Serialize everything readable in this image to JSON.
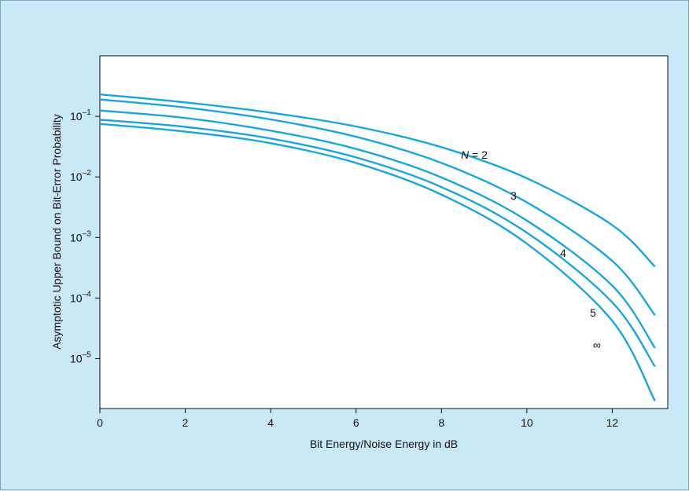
{
  "chart_data": {
    "type": "line",
    "title": "",
    "xlabel": "Bit Energy/Noise Energy in dB",
    "ylabel": "Asymptotic Upper Bound on Bit-Error Probability",
    "x_scale": "linear",
    "y_scale": "log",
    "xlim": [
      0,
      13.3
    ],
    "ylim": [
      1.5e-06,
      1.0
    ],
    "x_ticks": [
      0,
      2,
      4,
      6,
      8,
      10,
      12
    ],
    "y_ticks": [
      {
        "value": 0.1,
        "base": "10",
        "exp": "–1"
      },
      {
        "value": 0.01,
        "base": "10",
        "exp": "–2"
      },
      {
        "value": 0.001,
        "base": "10",
        "exp": "–3"
      },
      {
        "value": 0.0001,
        "base": "10",
        "exp": "–4"
      },
      {
        "value": 1e-05,
        "base": "10",
        "exp": "–5"
      }
    ],
    "grid": false,
    "line_color": "#1aa6dd",
    "series": [
      {
        "name": "N = 2",
        "x": [
          0,
          2,
          4,
          6,
          8,
          10,
          12,
          13
        ],
        "values": [
          0.23,
          0.17,
          0.115,
          0.068,
          0.031,
          0.0095,
          0.0016,
          0.00033
        ]
      },
      {
        "name": "3",
        "x": [
          0,
          2,
          4,
          6,
          8,
          10,
          12,
          13
        ],
        "values": [
          0.19,
          0.14,
          0.089,
          0.046,
          0.017,
          0.0038,
          0.00041,
          5.2e-05
        ]
      },
      {
        "name": "4",
        "x": [
          0,
          2,
          4,
          6,
          8,
          10,
          12,
          13
        ],
        "values": [
          0.125,
          0.094,
          0.058,
          0.029,
          0.0098,
          0.0019,
          0.00016,
          1.5e-05
        ]
      },
      {
        "name": "5",
        "x": [
          0,
          2,
          4,
          6,
          8,
          10,
          12,
          13
        ],
        "values": [
          0.088,
          0.067,
          0.043,
          0.021,
          0.0068,
          0.0012,
          8.5e-05,
          7.4e-06
        ]
      },
      {
        "name": "∞",
        "x": [
          0,
          2,
          4,
          6,
          8,
          10,
          12,
          13
        ],
        "values": [
          0.075,
          0.056,
          0.036,
          0.017,
          0.0051,
          0.00079,
          4.2e-05,
          2e-06
        ]
      }
    ],
    "curve_labels": [
      {
        "series": 0,
        "prefix": "N",
        "text": " = 2"
      },
      {
        "series": 1,
        "prefix": "",
        "text": "3"
      },
      {
        "series": 2,
        "prefix": "",
        "text": "4"
      },
      {
        "series": 3,
        "prefix": "",
        "text": "5"
      },
      {
        "series": 4,
        "prefix": "",
        "text": "∞"
      }
    ]
  }
}
